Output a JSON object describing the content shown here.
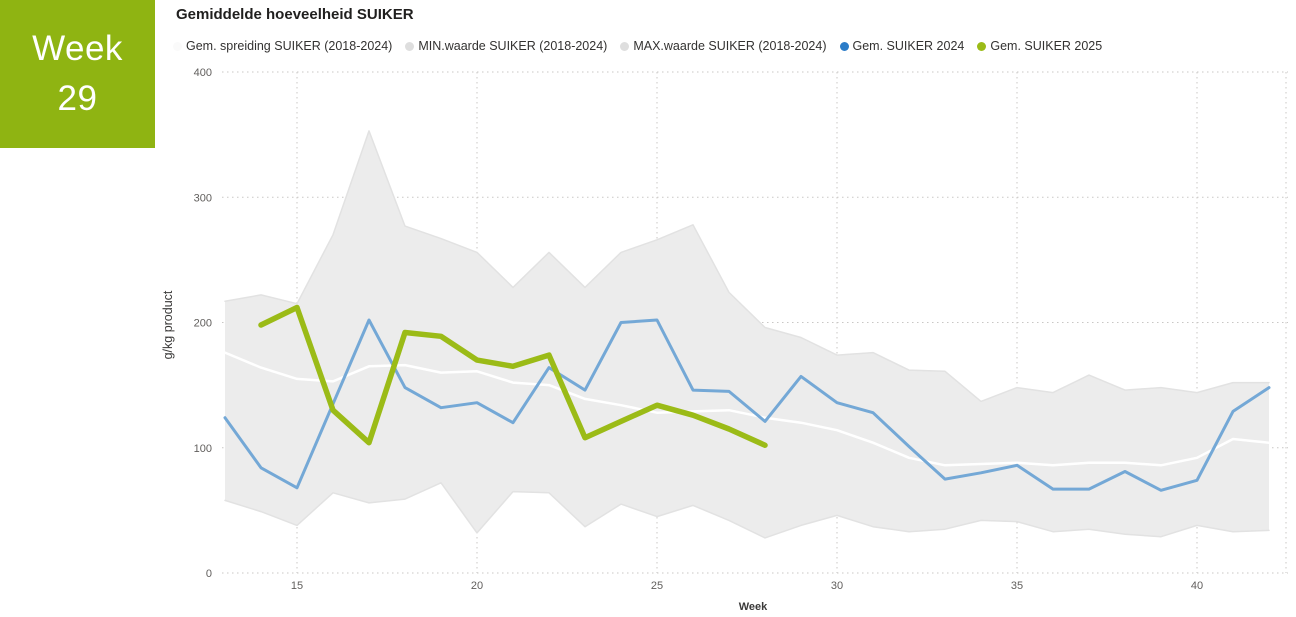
{
  "badge": {
    "line1": "Week",
    "line2": "29",
    "bg": "#8fb412"
  },
  "header": {
    "title": "Gemiddelde hoeveelheid SUIKER"
  },
  "legend": [
    {
      "label": "Gem. spreiding SUIKER (2018-2024)",
      "color": "#fafafa"
    },
    {
      "label": "MIN.waarde SUIKER (2018-2024)",
      "color": "#dedede"
    },
    {
      "label": "MAX.waarde SUIKER (2018-2024)",
      "color": "#dedede"
    },
    {
      "label": "Gem. SUIKER 2024",
      "color": "#2b7cc8"
    },
    {
      "label": "Gem. SUIKER 2025",
      "color": "#9bbb17"
    }
  ],
  "axes": {
    "xlabel": "Week",
    "ylabel": "g/kg product",
    "x_ticks": [
      15,
      20,
      25,
      30,
      35,
      40
    ],
    "y_ticks": [
      0,
      100,
      200,
      300,
      400
    ]
  },
  "chart_data": {
    "type": "line",
    "title": "Gemiddelde hoeveelheid SUIKER",
    "xlabel": "Week",
    "ylabel": "g/kg product",
    "xlim": [
      13,
      42
    ],
    "ylim": [
      0,
      400
    ],
    "x_ticks": [
      15,
      20,
      25,
      30,
      35,
      40
    ],
    "y_ticks": [
      0,
      100,
      200,
      300,
      400
    ],
    "grid": "dotted",
    "legend_position": "top",
    "band_fill": "#ececec",
    "series": [
      {
        "name": "MAX.waarde SUIKER (2018-2024)",
        "role": "max",
        "color": "#e2e2e2",
        "width": 1.5,
        "weeks": [
          13,
          14,
          15,
          16,
          17,
          18,
          19,
          20,
          21,
          22,
          23,
          24,
          25,
          26,
          27,
          28,
          29,
          30,
          31,
          32,
          33,
          34,
          35,
          36,
          37,
          38,
          39,
          40,
          41,
          42
        ],
        "values": [
          217,
          222,
          215,
          270,
          353,
          277,
          267,
          256,
          228,
          256,
          228,
          256,
          266,
          278,
          224,
          196,
          188,
          174,
          176,
          162,
          161,
          137,
          148,
          144,
          158,
          146,
          148,
          144,
          152,
          152
        ]
      },
      {
        "name": "MIN.waarde SUIKER (2018-2024)",
        "role": "min",
        "color": "#e2e2e2",
        "width": 1.5,
        "weeks": [
          13,
          14,
          15,
          16,
          17,
          18,
          19,
          20,
          21,
          22,
          23,
          24,
          25,
          26,
          27,
          28,
          29,
          30,
          31,
          32,
          33,
          34,
          35,
          36,
          37,
          38,
          39,
          40,
          41,
          42
        ],
        "values": [
          58,
          49,
          38,
          64,
          56,
          59,
          72,
          32,
          65,
          64,
          37,
          55,
          45,
          54,
          42,
          28,
          38,
          46,
          37,
          33,
          35,
          42,
          41,
          33,
          35,
          31,
          29,
          38,
          33,
          34
        ]
      },
      {
        "name": "Gem. spreiding SUIKER (2018-2024)",
        "role": "mean",
        "color": "#ffffff",
        "width": 2.5,
        "weeks": [
          13,
          14,
          15,
          16,
          17,
          18,
          19,
          20,
          21,
          22,
          23,
          24,
          25,
          26,
          27,
          28,
          29,
          30,
          31,
          32,
          33,
          34,
          35,
          36,
          37,
          38,
          39,
          40,
          41,
          42
        ],
        "values": [
          176,
          164,
          155,
          153,
          165,
          166,
          160,
          161,
          152,
          150,
          139,
          134,
          128,
          129,
          130,
          124,
          120,
          114,
          104,
          92,
          86,
          87,
          88,
          86,
          88,
          88,
          86,
          92,
          107,
          104
        ]
      },
      {
        "name": "Gem. SUIKER 2024",
        "role": "line",
        "color": "#74a8d6",
        "width": 3,
        "weeks": [
          13,
          14,
          15,
          16,
          17,
          18,
          19,
          20,
          21,
          22,
          23,
          24,
          25,
          26,
          27,
          28,
          29,
          30,
          31,
          32,
          33,
          34,
          35,
          36,
          37,
          38,
          39,
          40,
          41,
          42
        ],
        "values": [
          124,
          84,
          68,
          135,
          202,
          148,
          132,
          136,
          120,
          164,
          146,
          200,
          202,
          146,
          145,
          121,
          157,
          136,
          128,
          101,
          75,
          80,
          86,
          67,
          67,
          81,
          66,
          74,
          129,
          148
        ]
      },
      {
        "name": "Gem. SUIKER 2025",
        "role": "line",
        "color": "#9bbb17",
        "width": 5.5,
        "weeks": [
          14,
          15,
          16,
          17,
          18,
          19,
          20,
          21,
          22,
          23,
          24,
          25,
          26,
          27,
          28
        ],
        "values": [
          198,
          212,
          130,
          104,
          192,
          189,
          170,
          165,
          174,
          108,
          121,
          134,
          126,
          115,
          102
        ]
      }
    ]
  }
}
